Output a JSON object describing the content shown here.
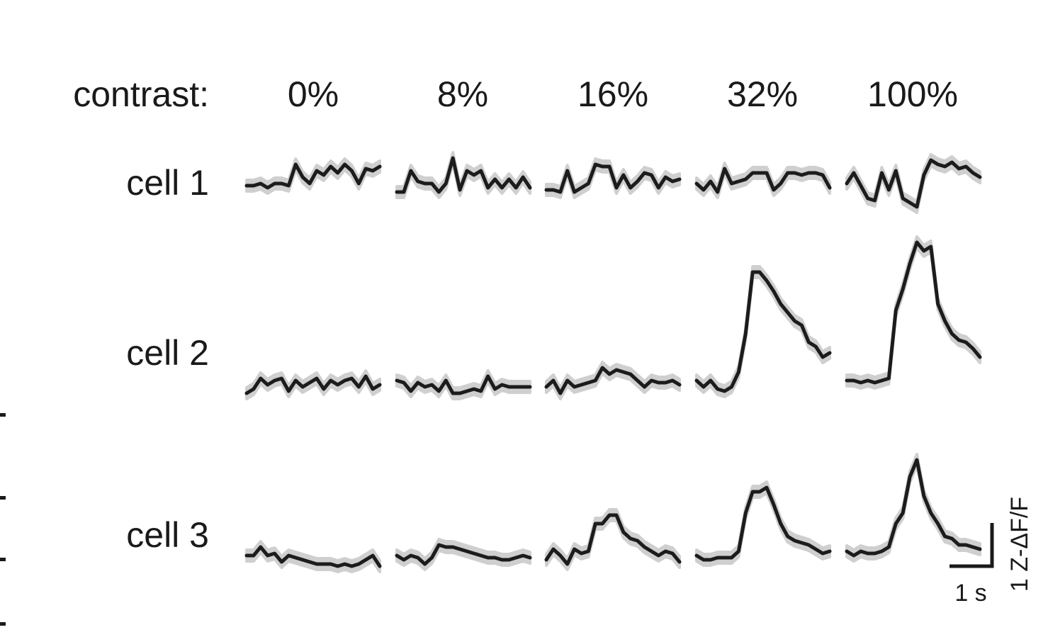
{
  "chart_data": {
    "type": "line",
    "header_label": "contrast:",
    "columns": [
      "0%",
      "8%",
      "16%",
      "32%",
      "100%"
    ],
    "rows": [
      "cell 1",
      "cell 2",
      "cell 3"
    ],
    "x_unit": "time (s)",
    "y_unit": "Z-ΔF/F",
    "samples_per_trace": 20,
    "shading": "gray band around each mean trace",
    "scale_bar": {
      "x_label": "1 s",
      "y_label": "1 Z-ΔF/F",
      "x_value_s": 1,
      "y_value": 1
    },
    "colors": {
      "trace": "#1c1c1c",
      "band": "#cfcfcf"
    },
    "traces": {
      "cell 1": [
        [
          0,
          0,
          0.05,
          -0.05,
          0.05,
          0.05,
          0,
          0.5,
          0.2,
          0.05,
          0.35,
          0.25,
          0.45,
          0.3,
          0.5,
          0.35,
          0.05,
          0.4,
          0.35,
          0.45
        ],
        [
          -0.15,
          -0.15,
          0.35,
          0.1,
          0.05,
          0.05,
          -0.15,
          0.05,
          0.65,
          -0.1,
          0.35,
          0.25,
          0.35,
          -0.05,
          0.15,
          -0.05,
          0.15,
          -0.05,
          0.2,
          -0.05
        ],
        [
          -0.1,
          -0.1,
          -0.15,
          0.35,
          -0.15,
          -0.05,
          0.05,
          0.5,
          0.45,
          0.45,
          -0.05,
          0.25,
          -0.05,
          0.1,
          0.3,
          0.25,
          -0.05,
          0.2,
          0.1,
          0.15
        ],
        [
          0.05,
          -0.1,
          0.1,
          -0.15,
          0.4,
          0.05,
          0.1,
          0.15,
          0.3,
          0.3,
          0.3,
          -0.1,
          0.05,
          0.3,
          0.3,
          0.25,
          0.3,
          0.3,
          0.25,
          -0.05
        ],
        [
          0.05,
          0.3,
          0,
          -0.3,
          -0.35,
          0.3,
          -0.1,
          0.35,
          -0.3,
          -0.4,
          -0.5,
          0.25,
          0.6,
          0.5,
          0.45,
          0.55,
          0.4,
          0.45,
          0.3,
          0.2
        ]
      ],
      "cell 2": [
        [
          0,
          0.1,
          0.35,
          0.2,
          0.3,
          0.35,
          0.05,
          0.3,
          0.15,
          0.25,
          0.35,
          0.1,
          0.3,
          0.2,
          0.3,
          0.35,
          0.15,
          0.4,
          0.1,
          0.2
        ],
        [
          0.3,
          0.25,
          0.05,
          0.25,
          0.15,
          0.2,
          0.05,
          0.3,
          0,
          0,
          0.05,
          0.1,
          0.05,
          0.4,
          0.1,
          0.2,
          0.15,
          0.15,
          0.15,
          0.15
        ],
        [
          0.15,
          0.3,
          0,
          0.3,
          0.15,
          0.2,
          0.25,
          0.3,
          0.6,
          0.45,
          0.55,
          0.5,
          0.45,
          0.3,
          0.15,
          0.3,
          0.25,
          0.25,
          0.3,
          0.2
        ],
        [
          0.3,
          0.15,
          0.3,
          0.1,
          0.05,
          0.15,
          0.5,
          1.4,
          2.85,
          2.85,
          2.65,
          2.4,
          2.1,
          1.9,
          1.7,
          1.6,
          1.2,
          1.1,
          0.85,
          0.95
        ],
        [
          0.3,
          0.3,
          0.25,
          0.3,
          0.25,
          0.3,
          0.35,
          1.95,
          2.45,
          3.05,
          3.55,
          3.35,
          3.45,
          2.1,
          1.7,
          1.4,
          1.25,
          1.2,
          1.05,
          0.85
        ]
      ],
      "cell 3": [
        [
          0.1,
          0.1,
          0.3,
          0.1,
          0.15,
          -0.05,
          0.1,
          0.05,
          0,
          -0.05,
          -0.1,
          -0.1,
          -0.1,
          -0.15,
          -0.1,
          -0.15,
          -0.1,
          0,
          0.1,
          -0.15
        ],
        [
          0.1,
          0,
          0.1,
          0.05,
          -0.1,
          0.05,
          0.35,
          0.3,
          0.3,
          0.25,
          0.2,
          0.15,
          0.1,
          0.05,
          0.05,
          0,
          0,
          0.05,
          0.1,
          0.05
        ],
        [
          0,
          0.25,
          0.1,
          -0.1,
          0.25,
          0.15,
          0.2,
          0.85,
          0.85,
          1.05,
          1.05,
          0.65,
          0.5,
          0.45,
          0.3,
          0.2,
          0.1,
          0.2,
          0.15,
          -0.05
        ],
        [
          0.1,
          0,
          0,
          0.05,
          0.05,
          0.05,
          0.2,
          1.1,
          1.6,
          1.6,
          1.7,
          1.3,
          0.85,
          0.55,
          0.45,
          0.4,
          0.35,
          0.25,
          0.15,
          0.2
        ],
        [
          0.2,
          0.1,
          0.2,
          0.15,
          0.15,
          0.2,
          0.3,
          0.85,
          1.1,
          1.95,
          2.35,
          1.5,
          1.1,
          0.85,
          0.55,
          0.5,
          0.35,
          0.35,
          0.3,
          0.25
        ]
      ]
    }
  }
}
